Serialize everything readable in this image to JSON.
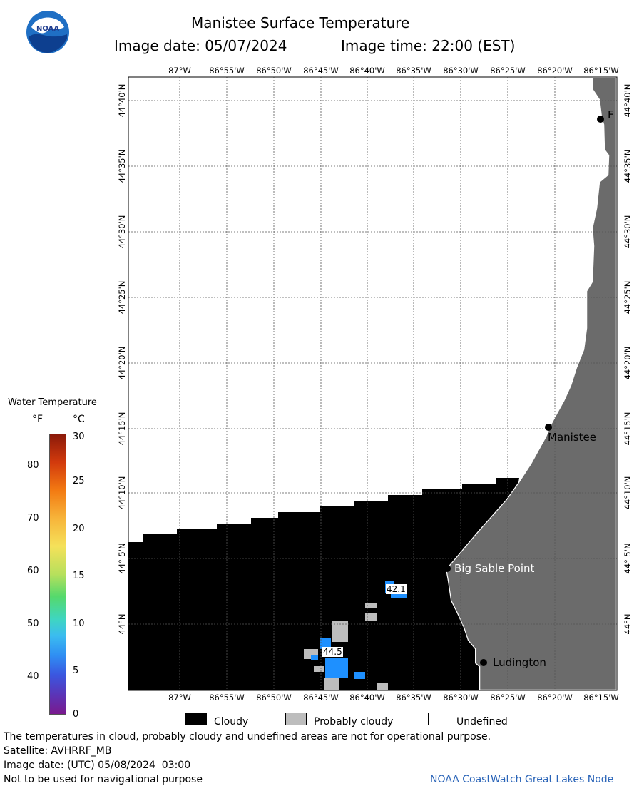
{
  "header": {
    "title": "Manistee Surface Temperature",
    "date_label": "Image date: 05/07/2024",
    "time_label": "Image time: 22:00 (EST)"
  },
  "logo": {
    "text": "NOAA",
    "icon": "noaa-logo-icon"
  },
  "colorbar": {
    "title": "Water Temperature",
    "unit_f": "°F",
    "unit_c": "°C",
    "f_ticks": [
      "80",
      "70",
      "60",
      "50",
      "40"
    ],
    "c_ticks": [
      "30",
      "25",
      "20",
      "15",
      "10",
      "5",
      "0"
    ]
  },
  "map": {
    "lon_labels": [
      "87°W",
      "86°55'W",
      "86°50'W",
      "86°45'W",
      "86°40'W",
      "86°35'W",
      "86°30'W",
      "86°25'W",
      "86°20'W",
      "86°15'W"
    ],
    "lat_labels": [
      "44°40'N",
      "44°35'N",
      "44°30'N",
      "44°25'N",
      "44°20'N",
      "44°15'N",
      "44°10'N",
      "44° 5'N",
      "44°N"
    ],
    "places": {
      "manistee": "Manistee",
      "big_sable": "Big Sable Point",
      "ludington": "Ludington",
      "f_label": "F"
    },
    "readings": [
      "42.1",
      "44.5"
    ],
    "colors": {
      "cloud": "#000000",
      "land": "#6b6b6b",
      "probably_cloudy": "#bdbdbd",
      "water": "#1e90ff"
    }
  },
  "legend": {
    "cloudy": "Cloudy",
    "probably_cloudy": "Probably cloudy",
    "undefined": "Undefined"
  },
  "footer": {
    "disclaimer": "The temperatures in cloud, probably cloudy and undefined areas are not for operational purpose.",
    "satellite": "Satellite: AVHRRF_MB",
    "utc_date": "Image date: (UTC) 05/08/2024  03:00",
    "nav_warning": "Not to be used for navigational purpose",
    "credit": "NOAA CoastWatch Great Lakes Node"
  }
}
